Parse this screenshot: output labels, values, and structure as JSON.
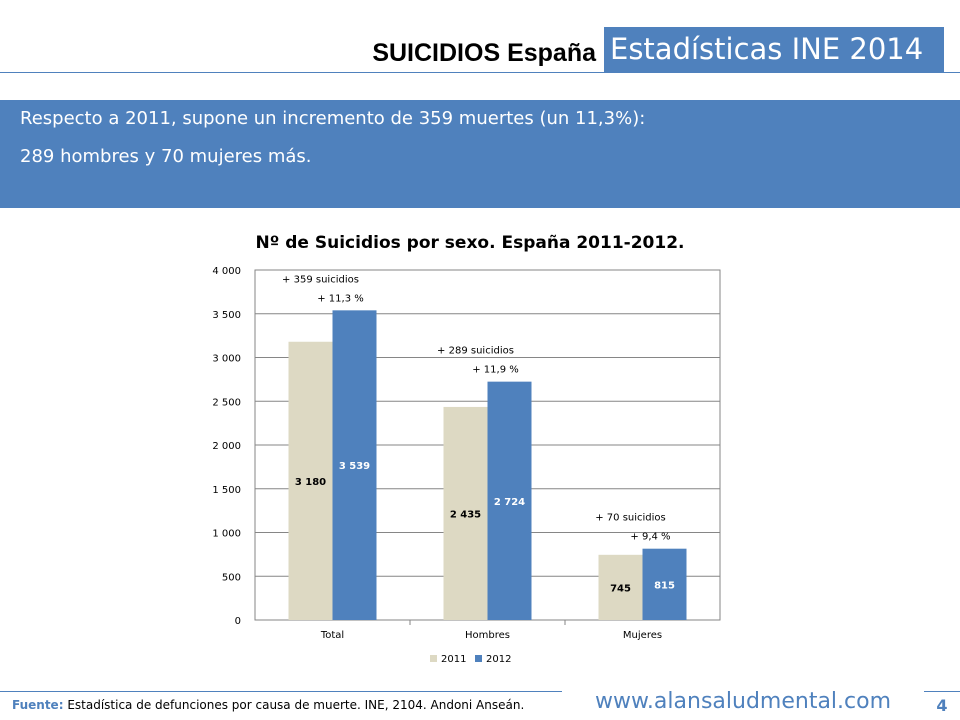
{
  "header": {
    "title_left": "SUICIDIOS España",
    "title_right": "Estadísticas INE 2014",
    "accent_color": "#4f81bd"
  },
  "banner": {
    "line1": "Respecto a 2011, supone un incremento de 359 muertes (un 11,3%):",
    "line2": "289 hombres y 70 mujeres más."
  },
  "chart_data": {
    "type": "bar",
    "title": "Nº de Suicidios por sexo. España 2011-2012.",
    "categories": [
      "Total",
      "Hombres",
      "Mujeres"
    ],
    "series": [
      {
        "name": "2011",
        "color": "#ddd9c3",
        "values": [
          3180,
          2435,
          745
        ],
        "labels": [
          "3 180",
          "2 435",
          "745"
        ]
      },
      {
        "name": "2012",
        "color": "#4f81bd",
        "values": [
          3539,
          2724,
          815
        ],
        "labels": [
          "3 539",
          "2 724",
          "815"
        ]
      }
    ],
    "ylim": [
      0,
      4000
    ],
    "yticks": [
      0,
      500,
      1000,
      1500,
      2000,
      2500,
      3000,
      3500,
      4000
    ],
    "ytick_labels": [
      "0",
      "500",
      "1 000",
      "1 500",
      "2 000",
      "2 500",
      "3 000",
      "3 500",
      "4 000"
    ],
    "grid": true,
    "legend_position": "bottom",
    "annotations": [
      {
        "category": "Total",
        "line1": "+ 359 suicidios",
        "line2": "+ 11,3 %"
      },
      {
        "category": "Hombres",
        "line1": "+ 289 suicidios",
        "line2": "+ 11,9 %"
      },
      {
        "category": "Mujeres",
        "line1": "+ 70 suicidios",
        "line2": "+ 9,4 %"
      }
    ]
  },
  "footer": {
    "source_label": "Fuente:",
    "source_text": " Estadística de defunciones por causa de muerte. INE, 2104. Andoni Anseán.",
    "website": "www.alansaludmental.com",
    "page_number": "4"
  }
}
